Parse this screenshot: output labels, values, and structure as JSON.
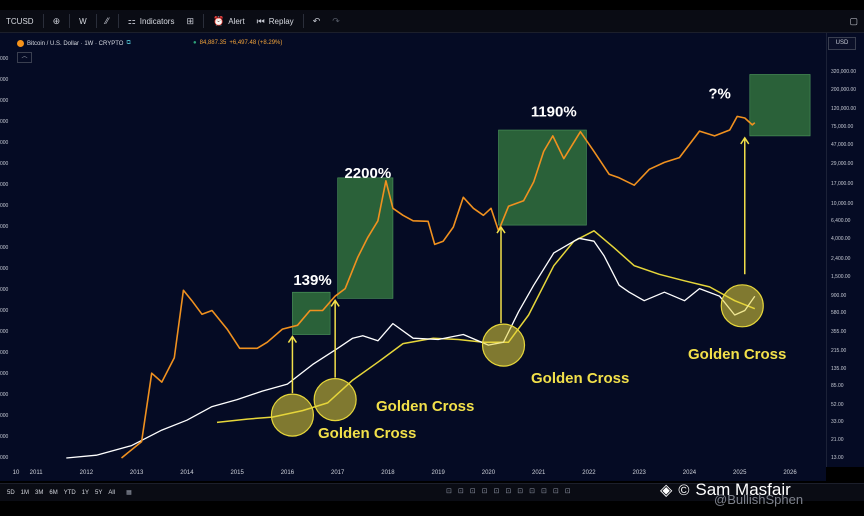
{
  "toolbar": {
    "symbol": "TCUSD",
    "interval": "W",
    "indicators": "Indicators",
    "alert": "Alert",
    "replay": "Replay"
  },
  "legend": {
    "title": "Bitcoin / U.S. Dollar · 1W · CRYPTO",
    "price": "84,887.35",
    "change": "+6,497.48 (+8.29%)"
  },
  "axis": {
    "currency": "USD",
    "right_ticks": [
      "320,000.00",
      "200,000.00",
      "120,000.00",
      "75,000.00",
      "47,000.00",
      "29,000.00",
      "17,000.00",
      "10,000.00",
      "6,400.00",
      "4,000.00",
      "2,400.00",
      "1,500.00",
      "900.00",
      "580.00",
      "355.00",
      "215.00",
      "135.00",
      "85.00",
      "52.00",
      "33.00",
      "21.00",
      "13.00"
    ],
    "left_ticks": [
      "000",
      "000",
      "000",
      "000",
      "000",
      "000",
      "000",
      "000",
      "000",
      "000",
      "000",
      "000",
      "000",
      "000",
      "000",
      "000",
      "000",
      "000",
      "000",
      "000"
    ],
    "x_ticks": [
      "10",
      "2011",
      "2012",
      "2013",
      "2014",
      "2015",
      "2016",
      "2017",
      "2018",
      "2019",
      "2020",
      "2021",
      "2022",
      "2023",
      "2024",
      "2025",
      "2026"
    ]
  },
  "timeframes": [
    "5D",
    "1M",
    "3M",
    "6M",
    "YTD",
    "1Y",
    "5Y",
    "All"
  ],
  "watermark": {
    "name": "Sam Masfair",
    "handle": "@BullishSphen"
  },
  "annotations": {
    "pct": [
      "139%",
      "2200%",
      "1190%",
      "?%"
    ],
    "golden_cross": "Golden Cross"
  },
  "colors": {
    "price_line": "#f0911f",
    "ma_short": "#ffffff",
    "ma_long": "#e6d63a",
    "box": "#2f6a3c",
    "circle": "#e6d63a",
    "background": "#050b24"
  },
  "chart_data": {
    "type": "line",
    "title": "Bitcoin / U.S. Dollar · 1W · CRYPTO",
    "y_scale": "log",
    "ylim": [
      13,
      320000
    ],
    "xlim": [
      2010.4,
      2026.6
    ],
    "series": [
      {
        "name": "",
        "points": [
          [
            2012.7,
            13
          ],
          [
            2013.1,
            20
          ],
          [
            2013.3,
            120
          ],
          [
            2013.5,
            95
          ],
          [
            2013.75,
            180
          ],
          [
            2013.93,
            1050
          ],
          [
            2014.1,
            800
          ],
          [
            2014.3,
            560
          ],
          [
            2014.5,
            620
          ],
          [
            2014.8,
            380
          ],
          [
            2015.05,
            230
          ],
          [
            2015.4,
            230
          ],
          [
            2015.6,
            270
          ],
          [
            2015.9,
            380
          ],
          [
            2016.2,
            420
          ],
          [
            2016.45,
            620
          ],
          [
            2016.7,
            620
          ],
          [
            2016.95,
            900
          ],
          [
            2017.15,
            1100
          ],
          [
            2017.4,
            2500
          ],
          [
            2017.6,
            4200
          ],
          [
            2017.8,
            6500
          ],
          [
            2017.96,
            18500
          ],
          [
            2018.1,
            9000
          ],
          [
            2018.3,
            7500
          ],
          [
            2018.5,
            6500
          ],
          [
            2018.8,
            6400
          ],
          [
            2018.93,
            3500
          ],
          [
            2019.1,
            3800
          ],
          [
            2019.3,
            5500
          ],
          [
            2019.5,
            12000
          ],
          [
            2019.7,
            9000
          ],
          [
            2019.9,
            7500
          ],
          [
            2020.05,
            9000
          ],
          [
            2020.2,
            5000
          ],
          [
            2020.4,
            9500
          ],
          [
            2020.7,
            11000
          ],
          [
            2020.9,
            18000
          ],
          [
            2021.1,
            40000
          ],
          [
            2021.28,
            60000
          ],
          [
            2021.5,
            33000
          ],
          [
            2021.83,
            67000
          ],
          [
            2022.1,
            40000
          ],
          [
            2022.4,
            22000
          ],
          [
            2022.6,
            20000
          ],
          [
            2022.9,
            16500
          ],
          [
            2023.2,
            25000
          ],
          [
            2023.5,
            30000
          ],
          [
            2023.8,
            34000
          ],
          [
            2024.2,
            68000
          ],
          [
            2024.5,
            60000
          ],
          [
            2024.8,
            70000
          ],
          [
            2024.95,
            100000
          ],
          [
            2025.1,
            96000
          ],
          [
            2025.25,
            80000
          ],
          [
            2025.3,
            84887
          ]
        ]
      },
      {
        "name": "",
        "points": [
          [
            2011.6,
            13
          ],
          [
            2012.2,
            14
          ],
          [
            2012.9,
            18
          ],
          [
            2013.5,
            27
          ],
          [
            2014,
            35
          ],
          [
            2014.5,
            50
          ],
          [
            2015,
            60
          ],
          [
            2015.5,
            75
          ],
          [
            2016,
            90
          ],
          [
            2016.5,
            150
          ],
          [
            2017,
            230
          ],
          [
            2017.3,
            300
          ],
          [
            2017.5,
            320
          ],
          [
            2017.8,
            280
          ],
          [
            2018.1,
            440
          ],
          [
            2018.5,
            300
          ],
          [
            2019,
            290
          ],
          [
            2019.5,
            330
          ],
          [
            2020,
            250
          ],
          [
            2020.3,
            270
          ],
          [
            2020.6,
            600
          ],
          [
            2020.9,
            1200
          ],
          [
            2021.3,
            2800
          ],
          [
            2021.8,
            4100
          ],
          [
            2022.1,
            3800
          ],
          [
            2022.3,
            2600
          ],
          [
            2022.6,
            1200
          ],
          [
            2022.8,
            1000
          ],
          [
            2023.1,
            800
          ],
          [
            2023.5,
            1000
          ],
          [
            2023.9,
            800
          ],
          [
            2024.2,
            1100
          ],
          [
            2024.6,
            900
          ],
          [
            2024.9,
            550
          ],
          [
            2025.1,
            620
          ],
          [
            2025.3,
            900
          ]
        ]
      },
      {
        "name": "",
        "points": [
          [
            2014.6,
            33
          ],
          [
            2015.2,
            36
          ],
          [
            2015.7,
            38
          ],
          [
            2016.3,
            45
          ],
          [
            2016.8,
            55
          ],
          [
            2017.3,
            100
          ],
          [
            2017.8,
            160
          ],
          [
            2018.3,
            260
          ],
          [
            2018.9,
            300
          ],
          [
            2019.4,
            290
          ],
          [
            2019.9,
            270
          ],
          [
            2020.4,
            270
          ],
          [
            2020.8,
            550
          ],
          [
            2021.3,
            2000
          ],
          [
            2021.7,
            3800
          ],
          [
            2022.1,
            5000
          ],
          [
            2022.5,
            3200
          ],
          [
            2022.9,
            2000
          ],
          [
            2023.4,
            1600
          ],
          [
            2023.9,
            1350
          ],
          [
            2024.4,
            1150
          ],
          [
            2024.9,
            800
          ],
          [
            2025.3,
            650
          ]
        ]
      }
    ],
    "annotations": [
      {
        "label": "139%",
        "x": 2016.5,
        "y": 1200
      },
      {
        "label": "2200%",
        "x": 2017.6,
        "y": 20000
      },
      {
        "label": "1190%",
        "x": 2021.3,
        "y": 100000
      },
      {
        "label": "?%",
        "x": 2024.6,
        "y": 160000
      }
    ],
    "golden_crosses": [
      {
        "label": "Golden Cross",
        "x": 2016.1,
        "y": 40
      },
      {
        "label": "Golden Cross",
        "x": 2016.95,
        "y": 60
      },
      {
        "label": "Golden Cross",
        "x": 2020.3,
        "y": 250
      },
      {
        "label": "Golden Cross",
        "x": 2025.05,
        "y": 700
      }
    ],
    "boxes": [
      {
        "x0": 2016.1,
        "x1": 2016.85,
        "y0": 330,
        "y1": 1000
      },
      {
        "x0": 2017.0,
        "x1": 2018.1,
        "y0": 850,
        "y1": 20000
      },
      {
        "x0": 2020.2,
        "x1": 2021.95,
        "y0": 5800,
        "y1": 70000
      },
      {
        "x0": 2025.2,
        "x1": 2026.4,
        "y0": 60000,
        "y1": 300000
      }
    ]
  }
}
